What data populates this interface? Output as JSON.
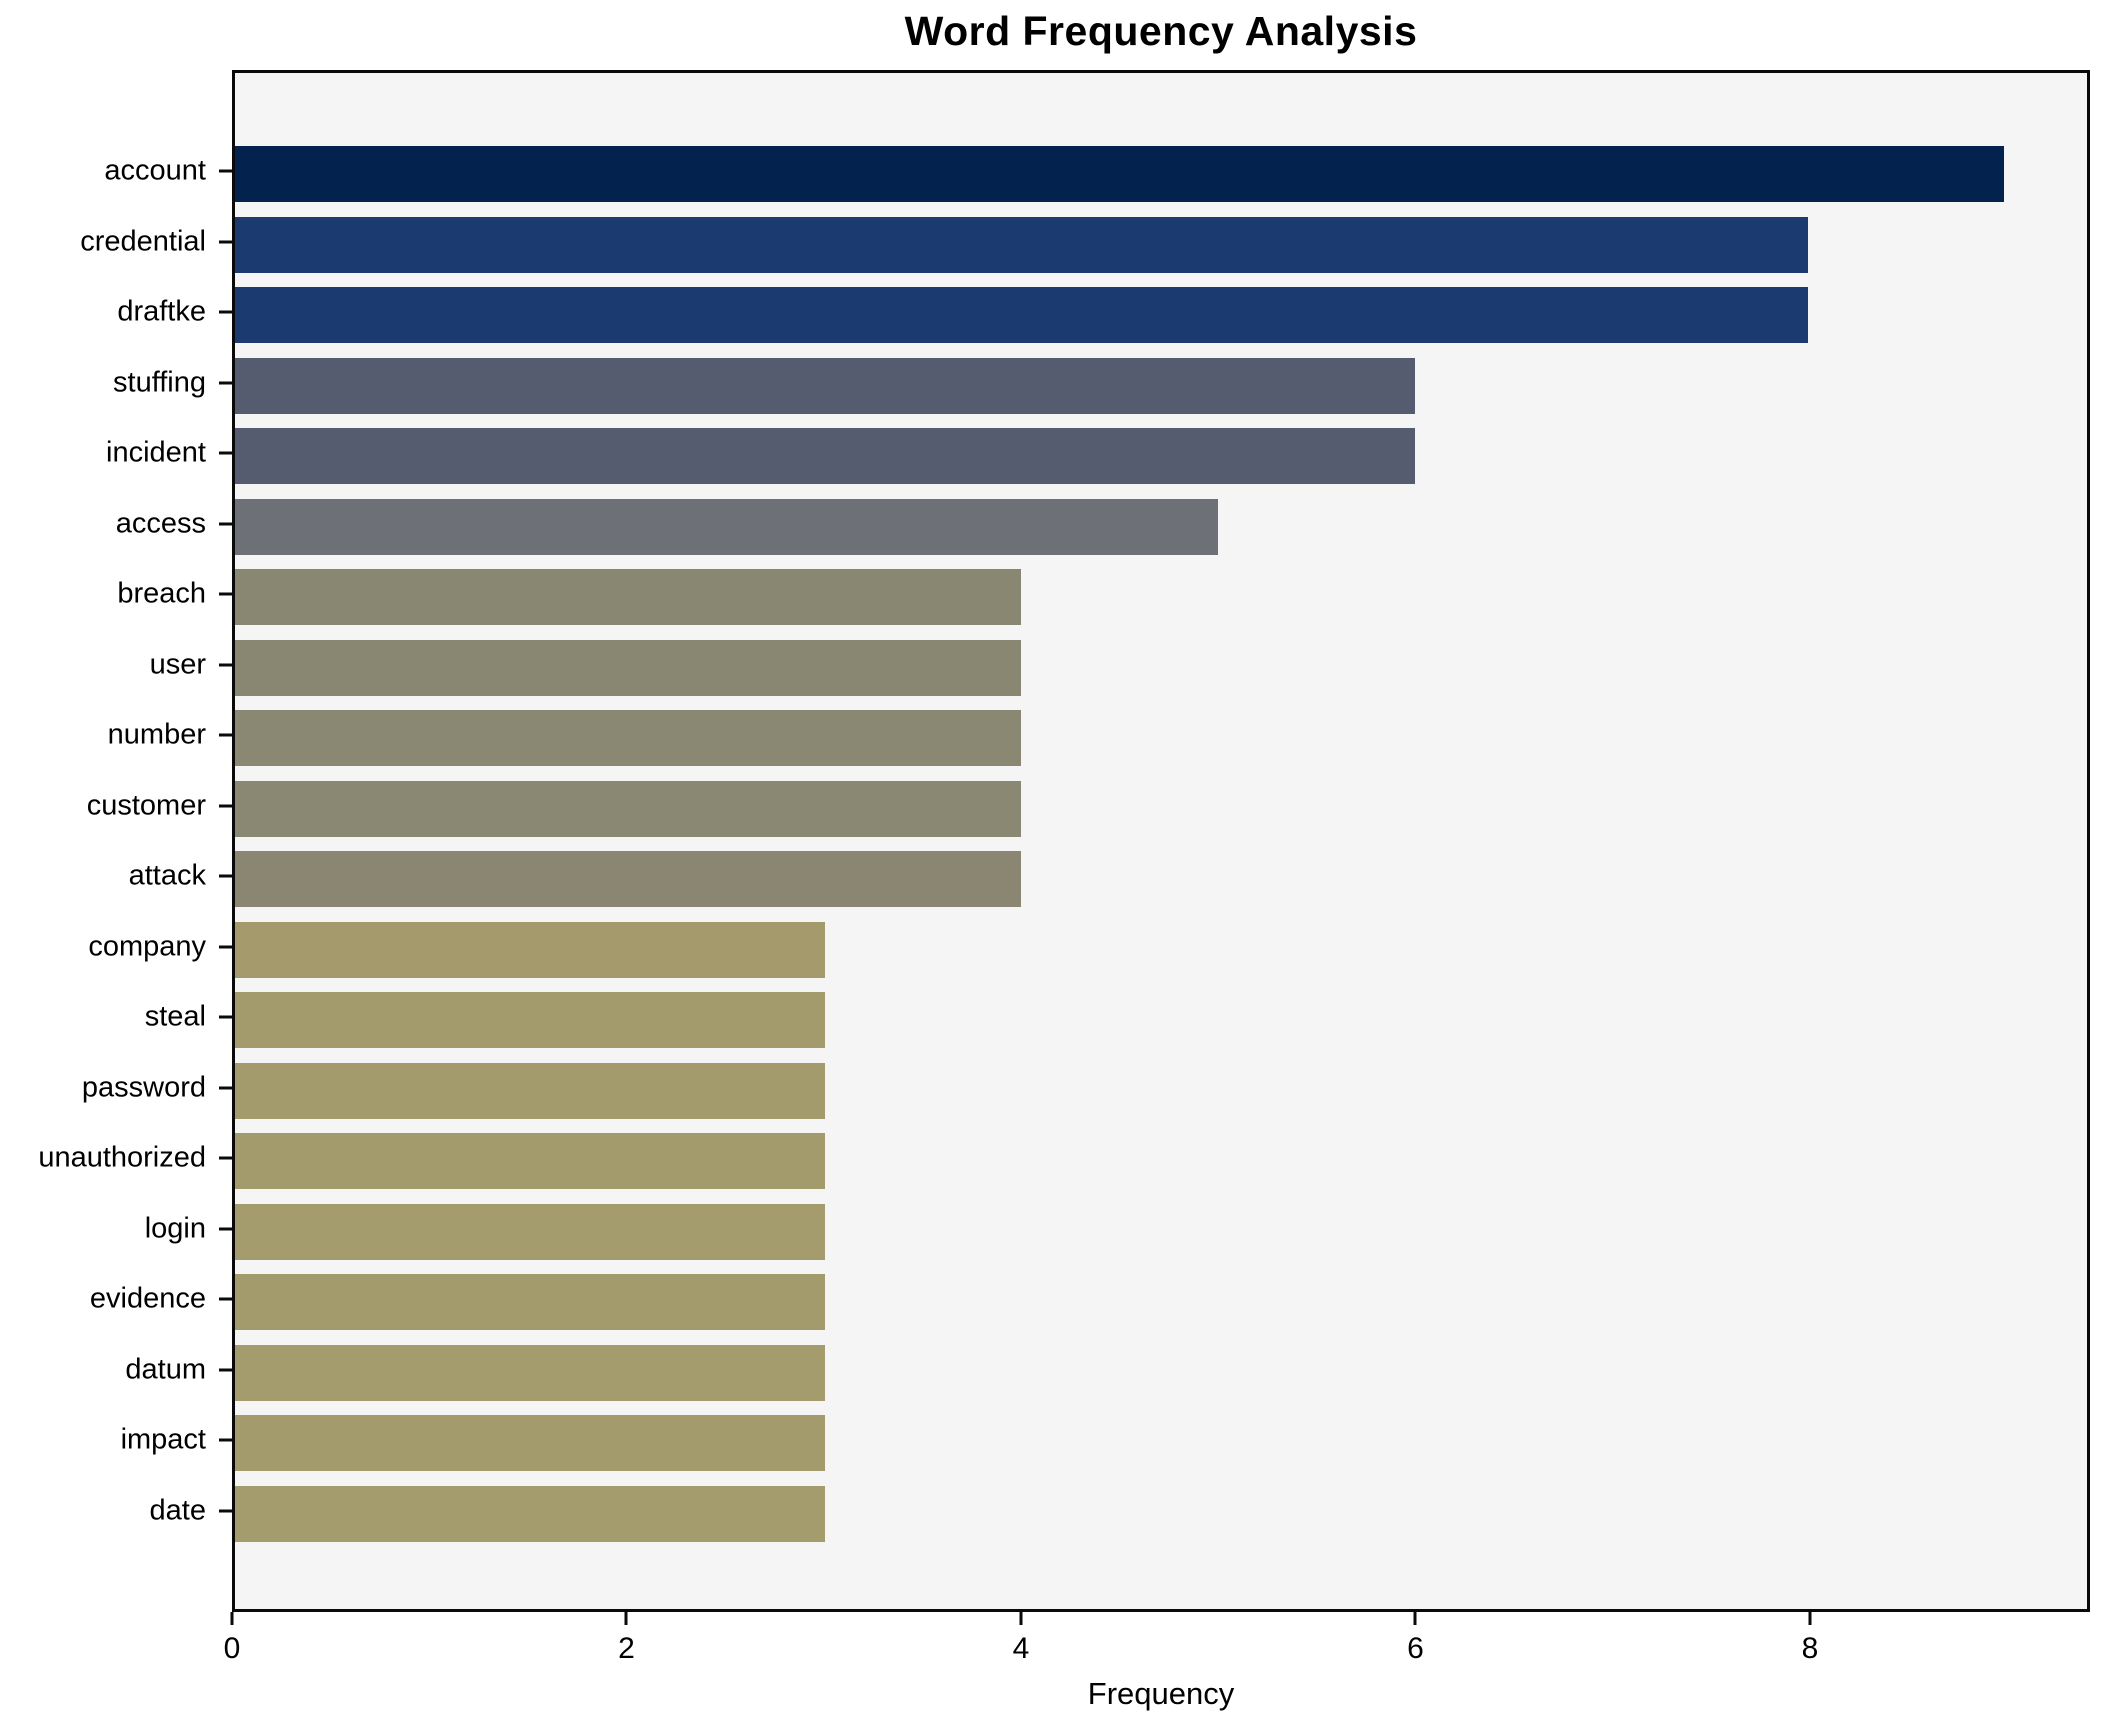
{
  "chart_data": {
    "type": "bar",
    "orientation": "horizontal",
    "title": "Word Frequency Analysis",
    "xlabel": "Frequency",
    "ylabel": "",
    "categories": [
      "account",
      "credential",
      "draftke",
      "stuffing",
      "incident",
      "access",
      "breach",
      "user",
      "number",
      "customer",
      "attack",
      "company",
      "steal",
      "password",
      "unauthorized",
      "login",
      "evidence",
      "datum",
      "impact",
      "date"
    ],
    "values": [
      9,
      8,
      8,
      6,
      6,
      5,
      4,
      4,
      4,
      4,
      4,
      3,
      3,
      3,
      3,
      3,
      3,
      3,
      3,
      3
    ],
    "colors": [
      "#03224e",
      "#1b3a70",
      "#1b3a70",
      "#555c6f",
      "#555c6f",
      "#6d7077",
      "#898672",
      "#898672",
      "#8a8773",
      "#8a8773",
      "#8b8672",
      "#a49a6c",
      "#a49b6d",
      "#a49b6d",
      "#a49b6d",
      "#a59c6e",
      "#a49b6c",
      "#a59c6e",
      "#a49b6d",
      "#a59c6e"
    ],
    "xticks": [
      0,
      2,
      4,
      6,
      8
    ],
    "xlim": [
      0,
      9.42
    ],
    "grid": false,
    "legend": "none",
    "plot_background": "#f5f5f6",
    "spine_color": "#0a0a0a"
  }
}
